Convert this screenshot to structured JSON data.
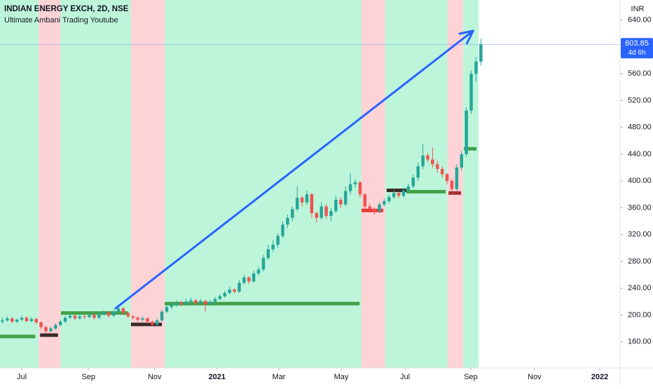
{
  "chart_data": {
    "type": "candlestick",
    "title": "INDIAN ENERGY EXCH, 2D, NSE",
    "subtitle": "Ultimate Ambani Trading Youtube",
    "currency": "INR",
    "up_color": "#26a69a",
    "down_color": "#ef5350",
    "candles": [
      [
        190,
        196,
        187,
        192
      ],
      [
        192,
        198,
        190,
        195
      ],
      [
        195,
        197,
        188,
        190
      ],
      [
        190,
        195,
        188,
        193
      ],
      [
        193,
        199,
        191,
        196
      ],
      [
        196,
        198,
        189,
        191
      ],
      [
        191,
        197,
        189,
        194
      ],
      [
        194,
        196,
        186,
        189
      ],
      [
        189,
        191,
        179,
        182
      ],
      [
        182,
        184,
        173,
        176
      ],
      [
        176,
        183,
        174,
        180
      ],
      [
        180,
        188,
        178,
        185
      ],
      [
        185,
        193,
        183,
        190
      ],
      [
        190,
        199,
        188,
        196
      ],
      [
        196,
        202,
        194,
        199
      ],
      [
        199,
        201,
        192,
        195
      ],
      [
        195,
        201,
        193,
        198
      ],
      [
        198,
        201,
        194,
        197
      ],
      [
        197,
        203,
        195,
        200
      ],
      [
        200,
        202,
        193,
        196
      ],
      [
        196,
        204,
        194,
        201
      ],
      [
        201,
        207,
        199,
        204
      ],
      [
        204,
        206,
        196,
        199
      ],
      [
        199,
        208,
        197,
        205
      ],
      [
        205,
        216,
        203,
        210
      ],
      [
        210,
        212,
        200,
        203
      ],
      [
        203,
        205,
        195,
        198
      ],
      [
        198,
        200,
        193,
        196
      ],
      [
        196,
        198,
        190,
        193
      ],
      [
        193,
        198,
        191,
        195
      ],
      [
        195,
        197,
        187,
        190
      ],
      [
        190,
        192,
        183,
        186
      ],
      [
        186,
        195,
        184,
        192
      ],
      [
        192,
        208,
        190,
        205
      ],
      [
        205,
        215,
        203,
        212
      ],
      [
        212,
        218,
        209,
        215
      ],
      [
        215,
        222,
        212,
        218
      ],
      [
        218,
        221,
        213,
        216
      ],
      [
        216,
        224,
        214,
        220
      ],
      [
        220,
        226,
        217,
        222
      ],
      [
        222,
        224,
        215,
        218
      ],
      [
        218,
        224,
        216,
        221
      ],
      [
        221,
        223,
        205,
        216
      ],
      [
        216,
        223,
        214,
        220
      ],
      [
        220,
        227,
        218,
        224
      ],
      [
        224,
        231,
        222,
        228
      ],
      [
        228,
        236,
        226,
        233
      ],
      [
        233,
        242,
        231,
        238
      ],
      [
        238,
        240,
        232,
        235
      ],
      [
        235,
        252,
        233,
        248
      ],
      [
        248,
        260,
        245,
        256
      ],
      [
        256,
        258,
        246,
        250
      ],
      [
        250,
        266,
        248,
        262
      ],
      [
        262,
        272,
        259,
        268
      ],
      [
        268,
        290,
        265,
        285
      ],
      [
        285,
        305,
        282,
        298
      ],
      [
        298,
        312,
        294,
        305
      ],
      [
        305,
        322,
        300,
        318
      ],
      [
        318,
        340,
        315,
        335
      ],
      [
        335,
        350,
        330,
        345
      ],
      [
        345,
        362,
        340,
        358
      ],
      [
        358,
        392,
        355,
        375
      ],
      [
        375,
        378,
        362,
        368
      ],
      [
        368,
        386,
        364,
        380
      ],
      [
        380,
        382,
        345,
        352
      ],
      [
        352,
        355,
        338,
        345
      ],
      [
        345,
        368,
        342,
        362
      ],
      [
        362,
        365,
        343,
        348
      ],
      [
        348,
        360,
        340,
        355
      ],
      [
        355,
        378,
        352,
        372
      ],
      [
        372,
        376,
        360,
        365
      ],
      [
        365,
        392,
        362,
        385
      ],
      [
        385,
        412,
        380,
        395
      ],
      [
        395,
        402,
        390,
        398
      ],
      [
        398,
        400,
        375,
        380
      ],
      [
        380,
        382,
        358,
        362
      ],
      [
        362,
        366,
        354,
        358
      ],
      [
        358,
        361,
        350,
        355
      ],
      [
        355,
        368,
        352,
        365
      ],
      [
        365,
        374,
        362,
        370
      ],
      [
        370,
        380,
        367,
        376
      ],
      [
        376,
        386,
        373,
        382
      ],
      [
        382,
        384,
        374,
        378
      ],
      [
        378,
        390,
        375,
        386
      ],
      [
        386,
        396,
        383,
        392
      ],
      [
        392,
        410,
        389,
        405
      ],
      [
        405,
        428,
        400,
        422
      ],
      [
        422,
        455,
        418,
        438
      ],
      [
        438,
        442,
        428,
        432
      ],
      [
        432,
        450,
        420,
        425
      ],
      [
        425,
        430,
        412,
        418
      ],
      [
        418,
        422,
        405,
        410
      ],
      [
        410,
        412,
        395,
        400
      ],
      [
        400,
        403,
        384,
        388
      ],
      [
        388,
        425,
        385,
        420
      ],
      [
        420,
        445,
        415,
        440
      ],
      [
        440,
        510,
        436,
        505
      ],
      [
        505,
        565,
        500,
        560
      ],
      [
        560,
        585,
        548,
        578
      ],
      [
        578,
        612,
        572,
        603.85
      ]
    ],
    "zones": [
      {
        "from": -0.5,
        "to": 7.5,
        "color": "#bdf5da"
      },
      {
        "from": 7.5,
        "to": 12,
        "color": "#fdd3d6"
      },
      {
        "from": 12,
        "to": 26.6,
        "color": "#bdf5da"
      },
      {
        "from": 26.6,
        "to": 33.6,
        "color": "#fdd3d6"
      },
      {
        "from": 33.6,
        "to": 74.3,
        "color": "#bdf5da"
      },
      {
        "from": 74.3,
        "to": 79.2,
        "color": "#fdd3d6"
      },
      {
        "from": 79.2,
        "to": 92.1,
        "color": "#bdf5da"
      },
      {
        "from": 92.1,
        "to": 95.3,
        "color": "#fdd3d6"
      },
      {
        "from": 95.3,
        "to": 98.5,
        "color": "#bdf5da"
      }
    ],
    "levels": [
      {
        "from": -0.5,
        "to": 6.8,
        "price": 168,
        "color": "#43a047"
      },
      {
        "from": 7.8,
        "to": 11.5,
        "price": 170,
        "color": "#3a2a2a"
      },
      {
        "from": 12.1,
        "to": 25.9,
        "price": 203,
        "color": "#43a047"
      },
      {
        "from": 26.6,
        "to": 33,
        "price": 186,
        "color": "#3a2a2a"
      },
      {
        "from": 33.6,
        "to": 73.9,
        "price": 217,
        "color": "#43a047"
      },
      {
        "from": 74.3,
        "to": 78.8,
        "price": 356,
        "color": "#e53935"
      },
      {
        "from": 79.5,
        "to": 83.6,
        "price": 386,
        "color": "#3a2a2a"
      },
      {
        "from": 83.6,
        "to": 91.7,
        "price": 384,
        "color": "#43a047"
      },
      {
        "from": 92.3,
        "to": 94.9,
        "price": 382,
        "color": "#a83232"
      },
      {
        "from": 95.5,
        "to": 98.1,
        "price": 448,
        "color": "#43a047"
      }
    ],
    "arrow": {
      "x": [
        23.4,
        97.4
      ],
      "y": [
        210,
        624
      ],
      "color": "#2962ff"
    },
    "last_price": 603.85,
    "countdown": "4d 6h",
    "xlim": [
      -0.5,
      127.8
    ],
    "ylim": [
      121,
      670
    ],
    "xticks": [
      {
        "value": 4,
        "label": "Jul"
      },
      {
        "value": 17.8,
        "label": "Sep"
      },
      {
        "value": 31.5,
        "label": "Nov"
      },
      {
        "value": 44.4,
        "label": "2021"
      },
      {
        "value": 57.2,
        "label": "Mar"
      },
      {
        "value": 70.1,
        "label": "May"
      },
      {
        "value": 83.3,
        "label": "Jul"
      },
      {
        "value": 96.9,
        "label": "Sep"
      },
      {
        "value": 110.1,
        "label": "Nov"
      },
      {
        "value": 123.6,
        "label": "2022"
      }
    ],
    "yticks": [
      {
        "value": 160,
        "label": "160.00"
      },
      {
        "value": 200,
        "label": "200.00"
      },
      {
        "value": 240,
        "label": "240.00"
      },
      {
        "value": 280,
        "label": "280.00"
      },
      {
        "value": 320,
        "label": "320.00"
      },
      {
        "value": 360,
        "label": "360.00"
      },
      {
        "value": 400,
        "label": "400.00"
      },
      {
        "value": 440,
        "label": "440.00"
      },
      {
        "value": 480,
        "label": "480.00"
      },
      {
        "value": 520,
        "label": "520.00"
      },
      {
        "value": 560,
        "label": "560.00"
      },
      {
        "value": 640,
        "label": "640.00"
      }
    ]
  }
}
